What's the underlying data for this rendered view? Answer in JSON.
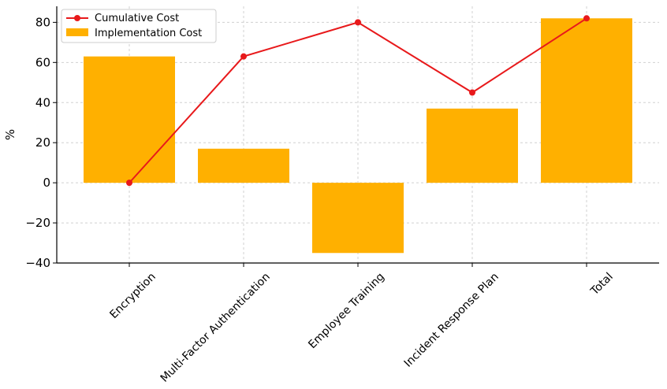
{
  "chart_data": {
    "type": "bar",
    "categories": [
      "Encryption",
      "Multi-Factor Authentication",
      "Employee Training",
      "Incident Response Plan",
      "Total"
    ],
    "series": [
      {
        "name": "Implementation Cost",
        "kind": "bar",
        "values": [
          63,
          17,
          -35,
          37,
          82
        ],
        "color": "#FFB000"
      },
      {
        "name": "Cumulative Cost",
        "kind": "line",
        "values": [
          0,
          63,
          80,
          45,
          82
        ],
        "color": "#E8191B"
      }
    ],
    "title": "",
    "xlabel": "",
    "ylabel": "%",
    "ylim": [
      -40,
      88
    ],
    "yticks": [
      80,
      60,
      40,
      20,
      0,
      -20,
      -40
    ],
    "ytick_labels": [
      "80",
      "60",
      "40",
      "20",
      "0",
      "−20",
      "−40"
    ],
    "grid": true,
    "legend_position": "top-left"
  }
}
